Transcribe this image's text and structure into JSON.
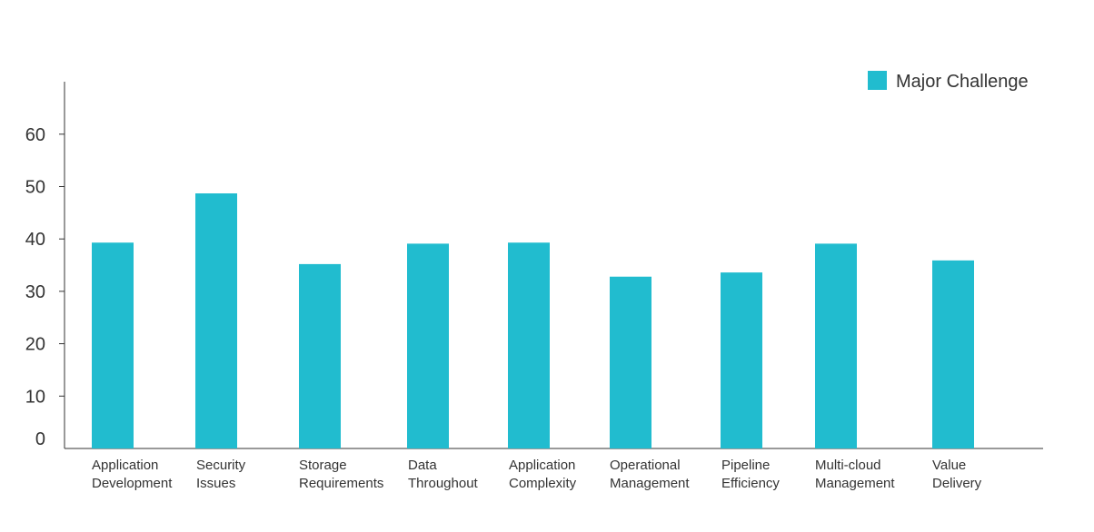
{
  "chart_data": {
    "type": "bar",
    "categories": [
      [
        "Application",
        "Development"
      ],
      [
        "Security",
        "Issues"
      ],
      [
        "Storage",
        "Requirements"
      ],
      [
        "Data",
        "Throughout"
      ],
      [
        "Application",
        "Complexity"
      ],
      [
        "Operational",
        "Management"
      ],
      [
        "Pipeline",
        "Efficiency"
      ],
      [
        "Multi-cloud",
        "Management"
      ],
      [
        "Value",
        "Delivery"
      ]
    ],
    "series": [
      {
        "name": "Major Challenge",
        "color": "#21bccf",
        "values": [
          39.3,
          48.7,
          35.2,
          39.1,
          39.3,
          32.8,
          33.6,
          39.1,
          35.9
        ]
      }
    ],
    "y_ticks": [
      0,
      10,
      20,
      30,
      40,
      50,
      60
    ],
    "ylim": [
      0,
      68
    ],
    "grid": false,
    "legend_position": "top-right",
    "axis_color": "#333333",
    "text_color": "#333333"
  }
}
